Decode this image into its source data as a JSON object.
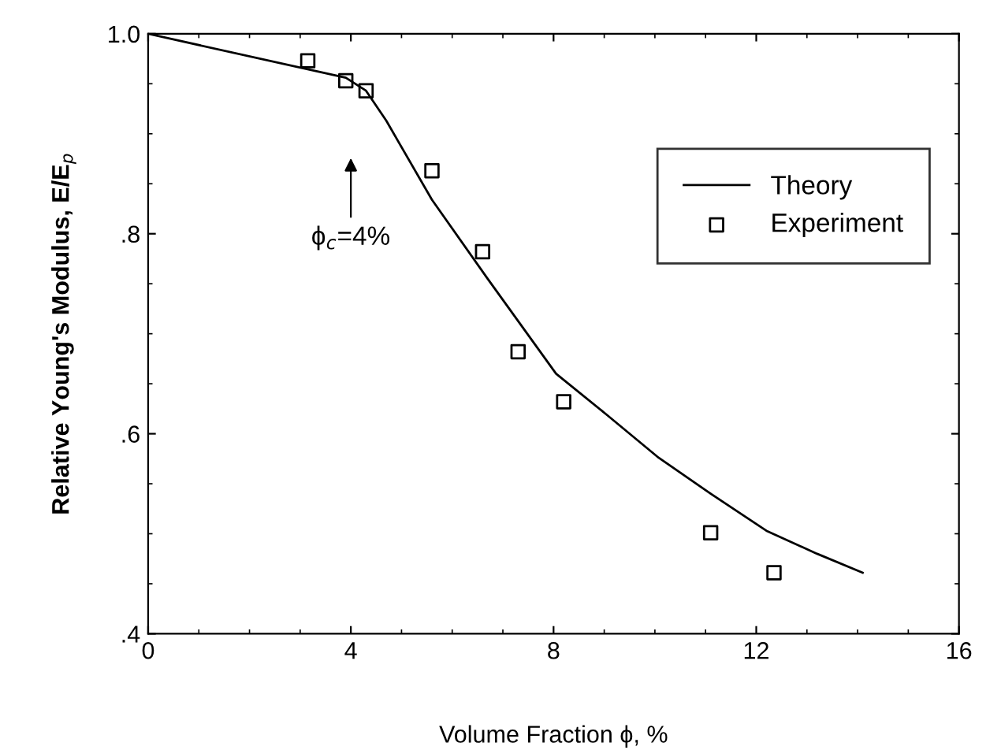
{
  "chart_data": {
    "type": "scatter",
    "xlabel": "Volume Fraction ϕ, %",
    "ylabel": "Relative Young's Modulus, E/E$_{p}$",
    "xlim": [
      0,
      16
    ],
    "ylim": [
      0.4,
      1.0
    ],
    "xticks": [
      0,
      4,
      8,
      12,
      16
    ],
    "yticks": [
      {
        "value": 0.4,
        "label": ".4"
      },
      {
        "value": 0.6,
        "label": ".6"
      },
      {
        "value": 0.8,
        "label": ".8"
      },
      {
        "value": 1.0,
        "label": "1.0"
      }
    ],
    "series": [
      {
        "name": "Theory",
        "type": "line",
        "color": "#000000",
        "marker": "none",
        "line_style": "solid",
        "x": [
          0,
          3.9,
          4.3,
          4.7,
          5.6,
          6.7,
          8.05,
          9.05,
          10.05,
          11.1,
          12.2,
          13.2,
          14.1
        ],
        "values": [
          1.0,
          0.956,
          0.943,
          0.913,
          0.834,
          0.755,
          0.66,
          0.619,
          0.577,
          0.54,
          0.503,
          0.48,
          0.461
        ]
      },
      {
        "name": "Experiment",
        "color": "#000000",
        "marker": "square",
        "x": [
          3.15,
          3.9,
          4.3,
          5.6,
          6.6,
          7.3,
          8.2,
          11.1,
          12.35
        ],
        "values": [
          0.973,
          0.953,
          0.943,
          0.863,
          0.782,
          0.682,
          0.632,
          0.501,
          0.461
        ]
      }
    ],
    "annotations": [
      "ϕ$_{c}$=4%"
    ],
    "legend": "upper right",
    "grid": false
  }
}
